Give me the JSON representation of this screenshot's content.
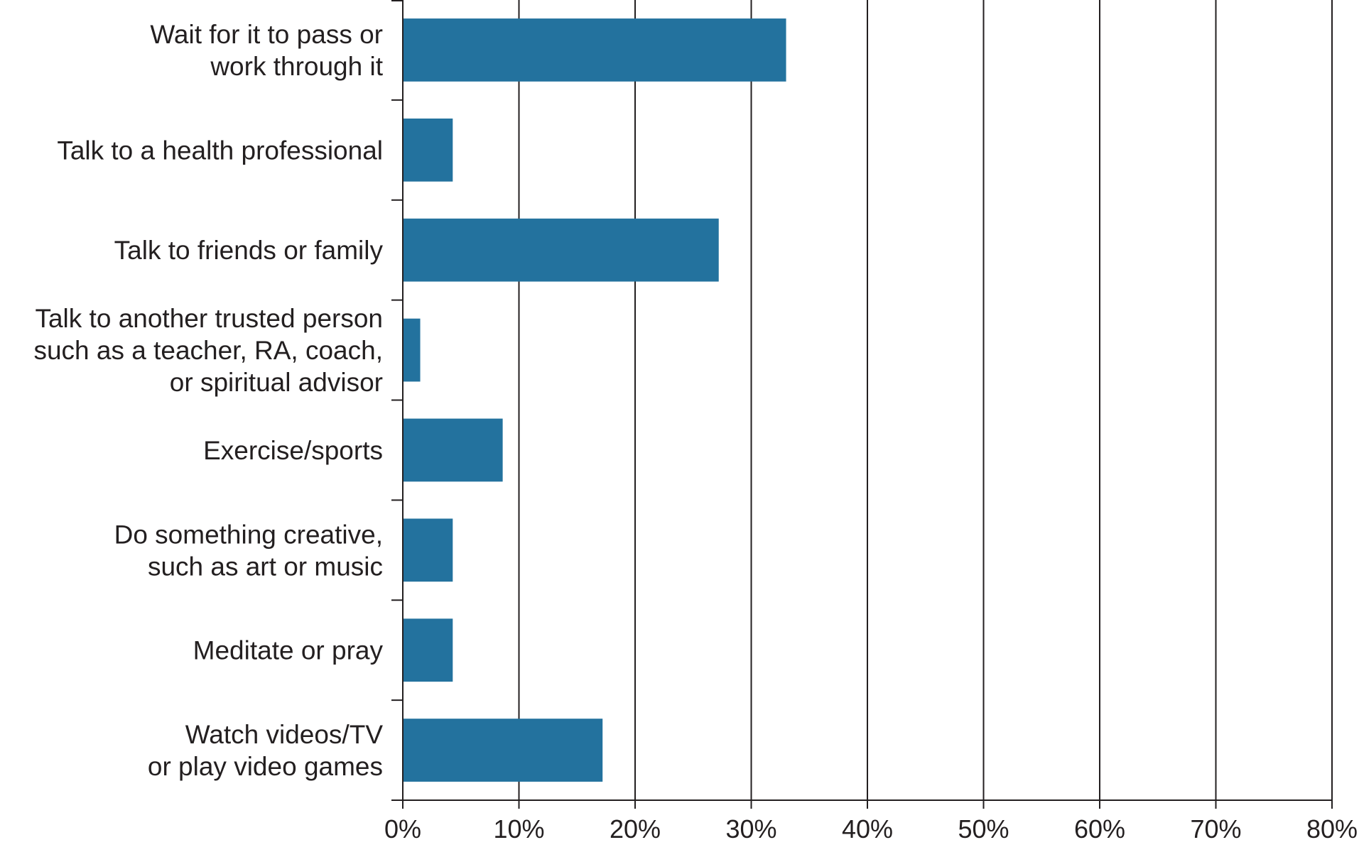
{
  "chart_data": {
    "type": "bar",
    "orientation": "horizontal",
    "categories": [
      [
        "Wait for it to pass or",
        "work through it"
      ],
      [
        "Talk to a health professional"
      ],
      [
        "Talk to friends or family"
      ],
      [
        "Talk to another trusted person",
        "such as a teacher, RA, coach,",
        "or spiritual advisor"
      ],
      [
        "Exercise/sports"
      ],
      [
        "Do something creative,",
        "such as art or music"
      ],
      [
        "Meditate or pray"
      ],
      [
        "Watch videos/TV",
        "or play video games"
      ]
    ],
    "values": [
      33,
      4.3,
      27.2,
      1.5,
      8.6,
      4.3,
      4.3,
      17.2
    ],
    "xlim": [
      0,
      80
    ],
    "xticks": [
      0,
      10,
      20,
      30,
      40,
      50,
      60,
      70,
      80
    ],
    "xtick_labels": [
      "0%",
      "10%",
      "20%",
      "30%",
      "40%",
      "50%",
      "60%",
      "70%",
      "80%"
    ],
    "grid": "vertical",
    "bar_color": "#23729e",
    "axis_color": "#231f20",
    "title": "",
    "xlabel": "",
    "ylabel": ""
  }
}
